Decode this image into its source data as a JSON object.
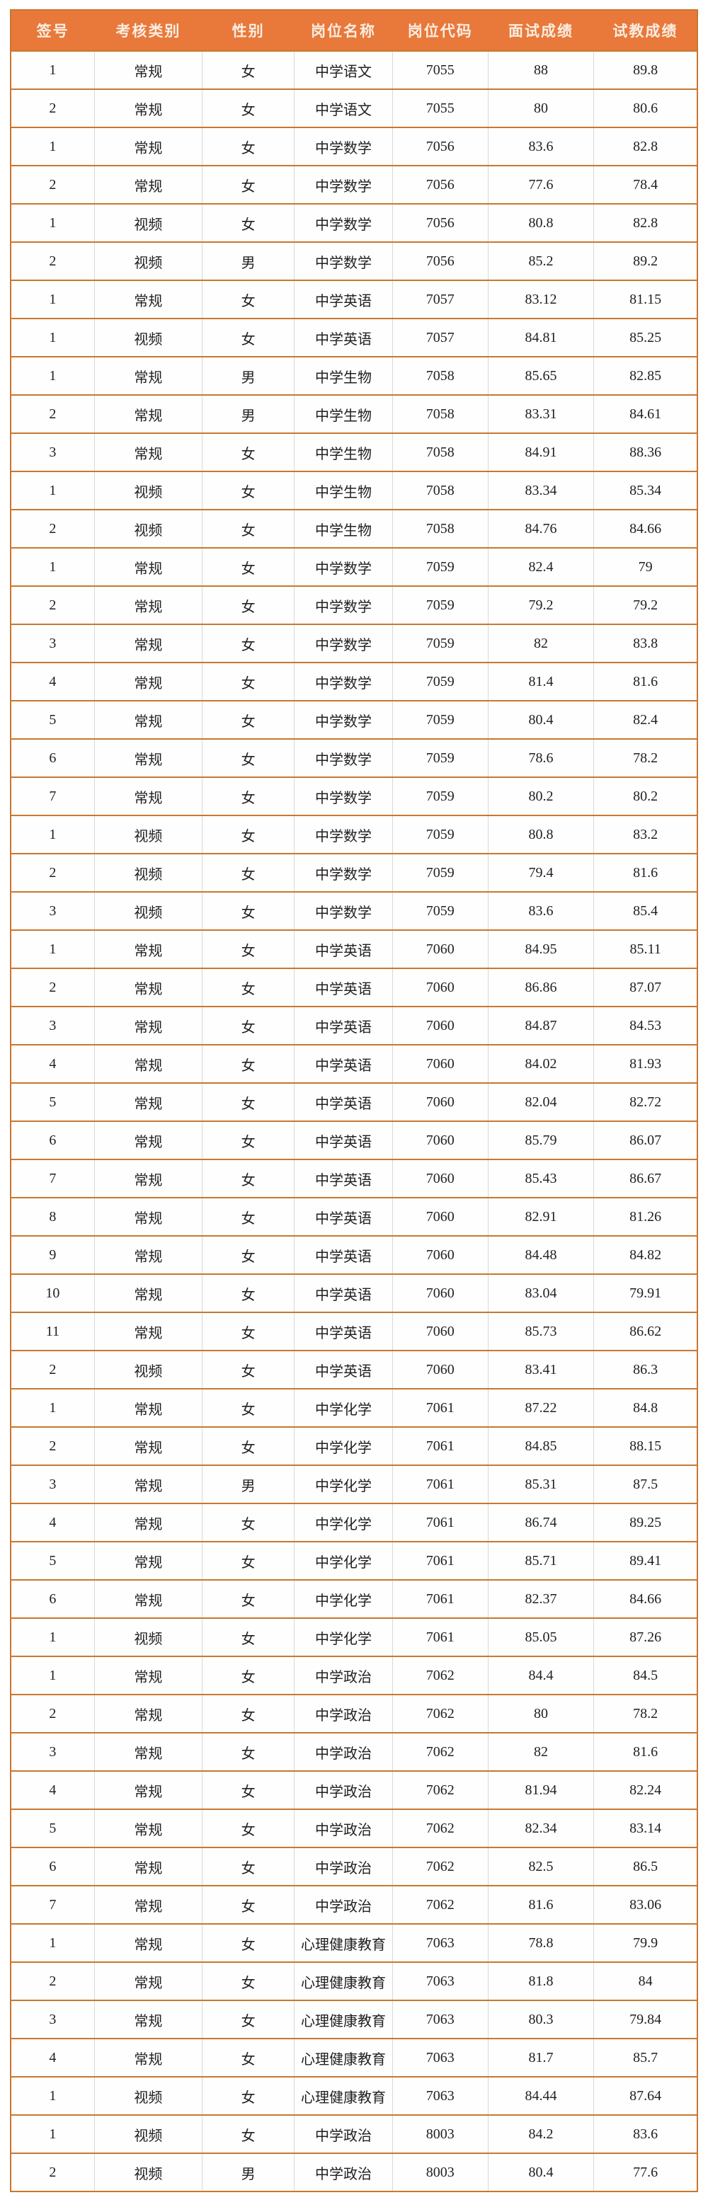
{
  "table": {
    "columns": [
      {
        "key": "sign-no",
        "label": "签号"
      },
      {
        "key": "category",
        "label": "考核类别"
      },
      {
        "key": "gender",
        "label": "性别"
      },
      {
        "key": "position-name",
        "label": "岗位名称"
      },
      {
        "key": "position-code",
        "label": "岗位代码"
      },
      {
        "key": "interview-score",
        "label": "面试成绩"
      },
      {
        "key": "teaching-score",
        "label": "试教成绩"
      }
    ],
    "rows": [
      [
        "1",
        "常规",
        "女",
        "中学语文",
        "7055",
        "88",
        "89.8"
      ],
      [
        "2",
        "常规",
        "女",
        "中学语文",
        "7055",
        "80",
        "80.6"
      ],
      [
        "1",
        "常规",
        "女",
        "中学数学",
        "7056",
        "83.6",
        "82.8"
      ],
      [
        "2",
        "常规",
        "女",
        "中学数学",
        "7056",
        "77.6",
        "78.4"
      ],
      [
        "1",
        "视频",
        "女",
        "中学数学",
        "7056",
        "80.8",
        "82.8"
      ],
      [
        "2",
        "视频",
        "男",
        "中学数学",
        "7056",
        "85.2",
        "89.2"
      ],
      [
        "1",
        "常规",
        "女",
        "中学英语",
        "7057",
        "83.12",
        "81.15"
      ],
      [
        "1",
        "视频",
        "女",
        "中学英语",
        "7057",
        "84.81",
        "85.25"
      ],
      [
        "1",
        "常规",
        "男",
        "中学生物",
        "7058",
        "85.65",
        "82.85"
      ],
      [
        "2",
        "常规",
        "男",
        "中学生物",
        "7058",
        "83.31",
        "84.61"
      ],
      [
        "3",
        "常规",
        "女",
        "中学生物",
        "7058",
        "84.91",
        "88.36"
      ],
      [
        "1",
        "视频",
        "女",
        "中学生物",
        "7058",
        "83.34",
        "85.34"
      ],
      [
        "2",
        "视频",
        "女",
        "中学生物",
        "7058",
        "84.76",
        "84.66"
      ],
      [
        "1",
        "常规",
        "女",
        "中学数学",
        "7059",
        "82.4",
        "79"
      ],
      [
        "2",
        "常规",
        "女",
        "中学数学",
        "7059",
        "79.2",
        "79.2"
      ],
      [
        "3",
        "常规",
        "女",
        "中学数学",
        "7059",
        "82",
        "83.8"
      ],
      [
        "4",
        "常规",
        "女",
        "中学数学",
        "7059",
        "81.4",
        "81.6"
      ],
      [
        "5",
        "常规",
        "女",
        "中学数学",
        "7059",
        "80.4",
        "82.4"
      ],
      [
        "6",
        "常规",
        "女",
        "中学数学",
        "7059",
        "78.6",
        "78.2"
      ],
      [
        "7",
        "常规",
        "女",
        "中学数学",
        "7059",
        "80.2",
        "80.2"
      ],
      [
        "1",
        "视频",
        "女",
        "中学数学",
        "7059",
        "80.8",
        "83.2"
      ],
      [
        "2",
        "视频",
        "女",
        "中学数学",
        "7059",
        "79.4",
        "81.6"
      ],
      [
        "3",
        "视频",
        "女",
        "中学数学",
        "7059",
        "83.6",
        "85.4"
      ],
      [
        "1",
        "常规",
        "女",
        "中学英语",
        "7060",
        "84.95",
        "85.11"
      ],
      [
        "2",
        "常规",
        "女",
        "中学英语",
        "7060",
        "86.86",
        "87.07"
      ],
      [
        "3",
        "常规",
        "女",
        "中学英语",
        "7060",
        "84.87",
        "84.53"
      ],
      [
        "4",
        "常规",
        "女",
        "中学英语",
        "7060",
        "84.02",
        "81.93"
      ],
      [
        "5",
        "常规",
        "女",
        "中学英语",
        "7060",
        "82.04",
        "82.72"
      ],
      [
        "6",
        "常规",
        "女",
        "中学英语",
        "7060",
        "85.79",
        "86.07"
      ],
      [
        "7",
        "常规",
        "女",
        "中学英语",
        "7060",
        "85.43",
        "86.67"
      ],
      [
        "8",
        "常规",
        "女",
        "中学英语",
        "7060",
        "82.91",
        "81.26"
      ],
      [
        "9",
        "常规",
        "女",
        "中学英语",
        "7060",
        "84.48",
        "84.82"
      ],
      [
        "10",
        "常规",
        "女",
        "中学英语",
        "7060",
        "83.04",
        "79.91"
      ],
      [
        "11",
        "常规",
        "女",
        "中学英语",
        "7060",
        "85.73",
        "86.62"
      ],
      [
        "2",
        "视频",
        "女",
        "中学英语",
        "7060",
        "83.41",
        "86.3"
      ],
      [
        "1",
        "常规",
        "女",
        "中学化学",
        "7061",
        "87.22",
        "84.8"
      ],
      [
        "2",
        "常规",
        "女",
        "中学化学",
        "7061",
        "84.85",
        "88.15"
      ],
      [
        "3",
        "常规",
        "男",
        "中学化学",
        "7061",
        "85.31",
        "87.5"
      ],
      [
        "4",
        "常规",
        "女",
        "中学化学",
        "7061",
        "86.74",
        "89.25"
      ],
      [
        "5",
        "常规",
        "女",
        "中学化学",
        "7061",
        "85.71",
        "89.41"
      ],
      [
        "6",
        "常规",
        "女",
        "中学化学",
        "7061",
        "82.37",
        "84.66"
      ],
      [
        "1",
        "视频",
        "女",
        "中学化学",
        "7061",
        "85.05",
        "87.26"
      ],
      [
        "1",
        "常规",
        "女",
        "中学政治",
        "7062",
        "84.4",
        "84.5"
      ],
      [
        "2",
        "常规",
        "女",
        "中学政治",
        "7062",
        "80",
        "78.2"
      ],
      [
        "3",
        "常规",
        "女",
        "中学政治",
        "7062",
        "82",
        "81.6"
      ],
      [
        "4",
        "常规",
        "女",
        "中学政治",
        "7062",
        "81.94",
        "82.24"
      ],
      [
        "5",
        "常规",
        "女",
        "中学政治",
        "7062",
        "82.34",
        "83.14"
      ],
      [
        "6",
        "常规",
        "女",
        "中学政治",
        "7062",
        "82.5",
        "86.5"
      ],
      [
        "7",
        "常规",
        "女",
        "中学政治",
        "7062",
        "81.6",
        "83.06"
      ],
      [
        "1",
        "常规",
        "女",
        "心理健康教育",
        "7063",
        "78.8",
        "79.9"
      ],
      [
        "2",
        "常规",
        "女",
        "心理健康教育",
        "7063",
        "81.8",
        "84"
      ],
      [
        "3",
        "常规",
        "女",
        "心理健康教育",
        "7063",
        "80.3",
        "79.84"
      ],
      [
        "4",
        "常规",
        "女",
        "心理健康教育",
        "7063",
        "81.7",
        "85.7"
      ],
      [
        "1",
        "视频",
        "女",
        "心理健康教育",
        "7063",
        "84.44",
        "87.64"
      ],
      [
        "1",
        "视频",
        "女",
        "中学政治",
        "8003",
        "84.2",
        "83.6"
      ],
      [
        "2",
        "视频",
        "男",
        "中学政治",
        "8003",
        "80.4",
        "77.6"
      ]
    ]
  },
  "colors": {
    "header_bg": "#E8793A",
    "header_text": "#FAEDE2",
    "row_border": "#C9772E",
    "column_border": "#D8D8D8",
    "cell_text": "#1F1F1F",
    "page_bg": "#FFFFFF"
  }
}
